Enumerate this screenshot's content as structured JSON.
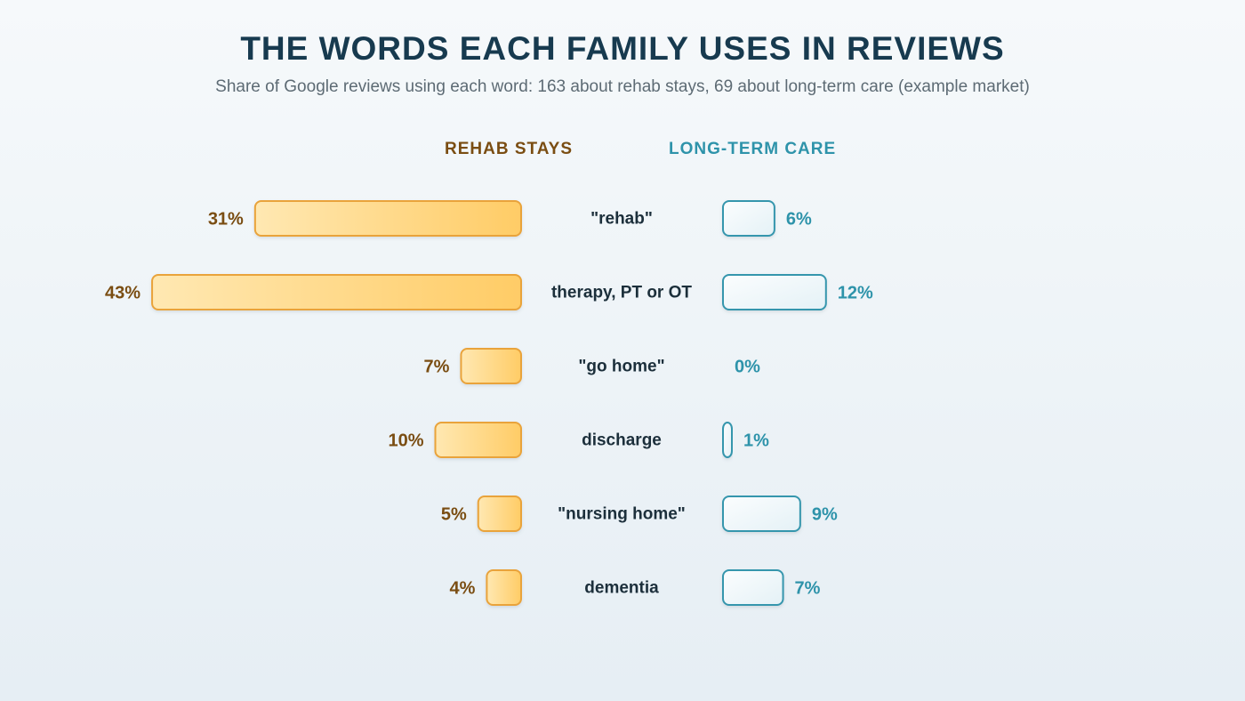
{
  "chart_data": {
    "type": "bar",
    "title": "THE WORDS EACH FAMILY USES IN REVIEWS",
    "subtitle": "Share of Google reviews using each word: 163 about rehab stays, 69 about long-term care (example market)",
    "categories": [
      "\"rehab\"",
      "therapy, PT or OT",
      "\"go home\"",
      "discharge",
      "\"nursing home\"",
      "dementia"
    ],
    "series": [
      {
        "name": "REHAB STAYS",
        "values": [
          31,
          43,
          7,
          10,
          5,
          4
        ],
        "color": "#f5b040"
      },
      {
        "name": "LONG-TERM CARE",
        "values": [
          6,
          12,
          0,
          1,
          9,
          7
        ],
        "color": "#2e93aa"
      }
    ],
    "value_suffix": "%",
    "layout": "back-to-back horizontal bars",
    "xlim": [
      0,
      43
    ],
    "grid": false
  }
}
